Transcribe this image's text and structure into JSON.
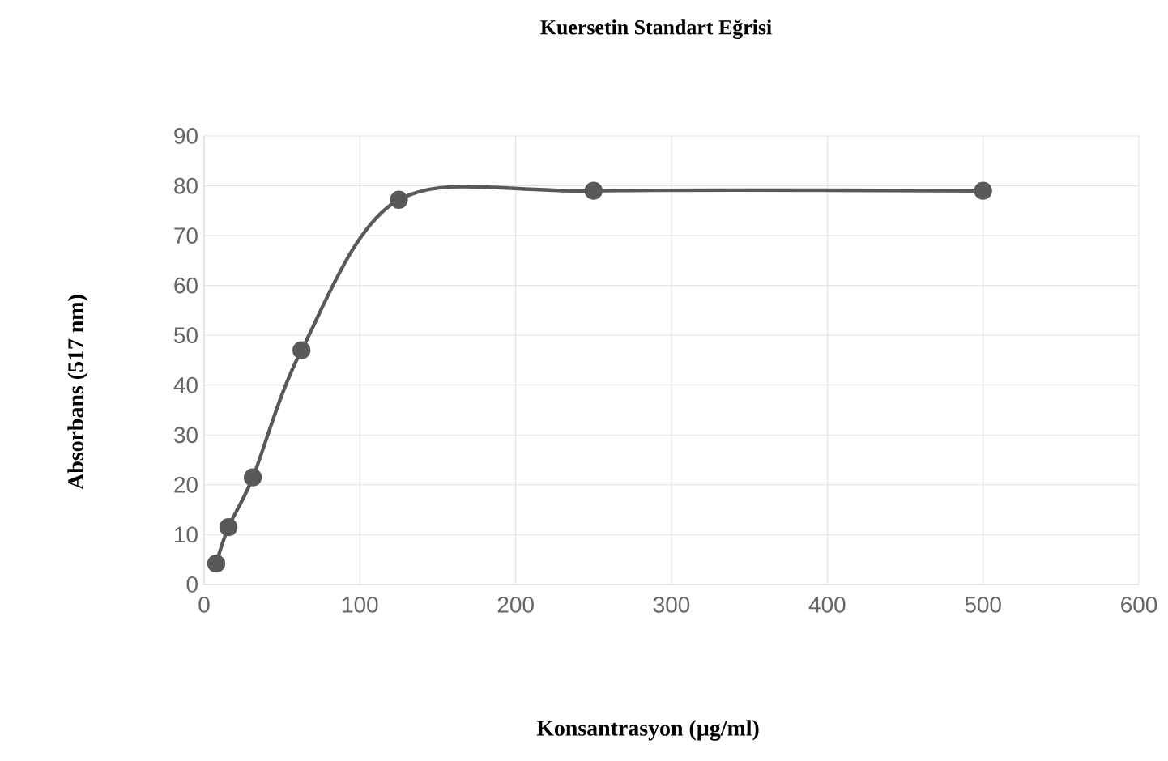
{
  "chart_data": {
    "type": "line",
    "title": "Kuersetin Standart Eğrisi",
    "xlabel": "Konsantrasyon (µg/ml)",
    "ylabel": "Absorbans (517 nm)",
    "x": [
      7.8,
      15.6,
      31.25,
      62.5,
      125,
      250,
      500
    ],
    "series": [
      {
        "color": "#595959",
        "values": [
          4.2,
          11.5,
          21.5,
          47,
          77.2,
          79,
          79
        ]
      }
    ],
    "xlim": [
      0,
      600
    ],
    "ylim": [
      0,
      90
    ],
    "xticks": [
      0,
      100,
      200,
      300,
      400,
      500,
      600
    ],
    "yticks": [
      0,
      10,
      20,
      30,
      40,
      50,
      60,
      70,
      80,
      90
    ],
    "grid": true,
    "marker": "circle",
    "line_style": "solid"
  }
}
